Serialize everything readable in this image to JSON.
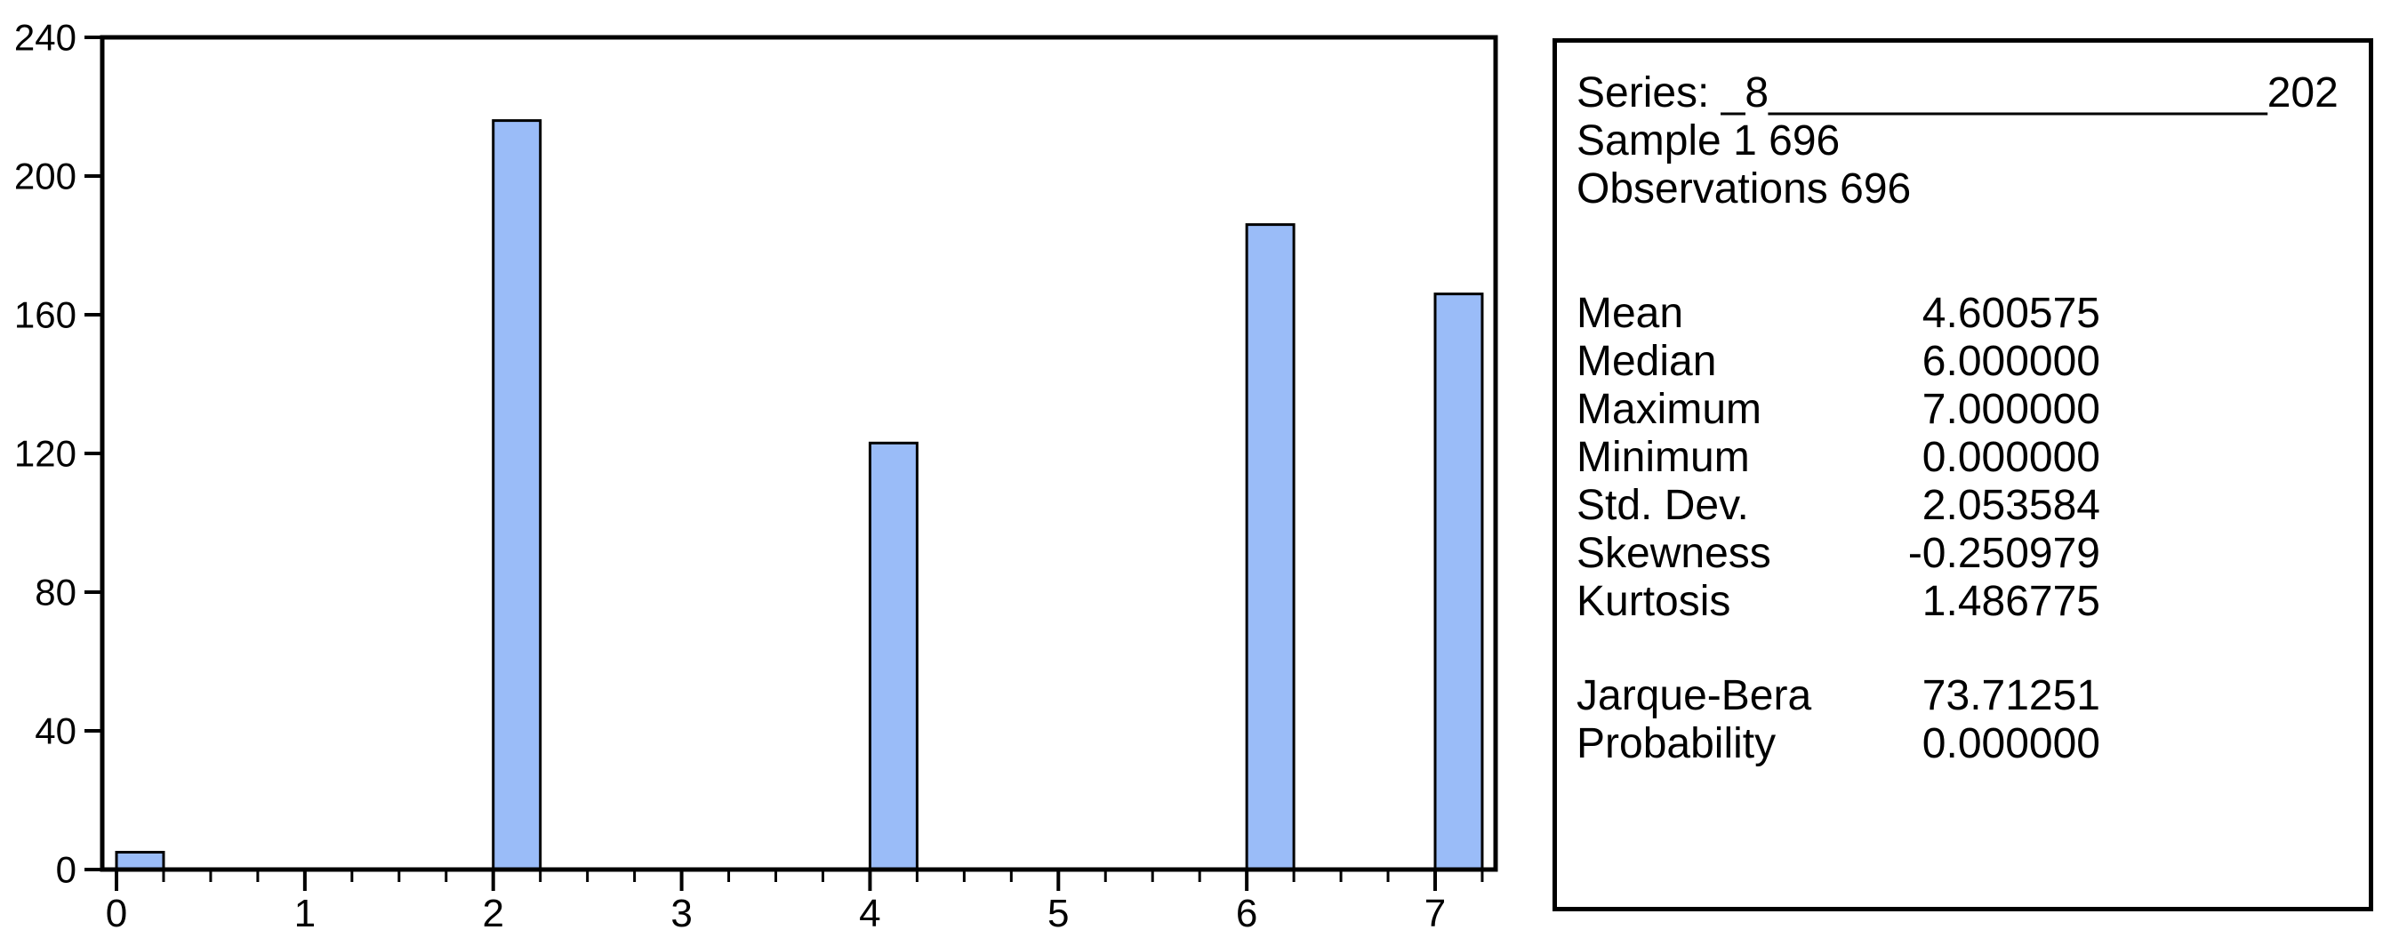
{
  "chart_data": {
    "type": "bar",
    "title": "",
    "xlabel": "",
    "ylabel": "",
    "x": [
      0,
      2,
      4,
      6,
      7
    ],
    "values": [
      5,
      216,
      123,
      186,
      166
    ],
    "bar_width_units": 0.25,
    "x_ticks_major": [
      0,
      1,
      2,
      3,
      4,
      5,
      6,
      7
    ],
    "x_tick_labels": [
      "0",
      "1",
      "2",
      "3",
      "4",
      "5",
      "6",
      "7"
    ],
    "x_minor_step": 0.25,
    "x_minor_range": [
      0.25,
      7.25
    ],
    "y_ticks": [
      0,
      40,
      80,
      120,
      160,
      200,
      240
    ],
    "y_tick_labels": [
      "0",
      "40",
      "80",
      "120",
      "160",
      "200",
      "240"
    ],
    "ylim": [
      0,
      240
    ],
    "xlim": [
      -0.075,
      7.32
    ],
    "grid": "off",
    "legend": "none",
    "colors": {
      "bar_fill": "#9abcf8",
      "bar_stroke": "#000000",
      "axis": "#000000",
      "background": "#ffffff"
    }
  },
  "stats_panel": {
    "series_line": "Series: _8_____________________202",
    "sample_line": "Sample 1 696",
    "observations_line": "Observations 696",
    "rows_primary": [
      {
        "label": "Mean",
        "value": "4.600575"
      },
      {
        "label": "Median",
        "value": "6.000000"
      },
      {
        "label": "Maximum",
        "value": "7.000000"
      },
      {
        "label": "Minimum",
        "value": "0.000000"
      },
      {
        "label": "Std. Dev.",
        "value": "2.053584"
      },
      {
        "label": "Skewness",
        "value": "-0.250979"
      },
      {
        "label": "Kurtosis",
        "value": "1.486775"
      }
    ],
    "rows_secondary": [
      {
        "label": "Jarque-Bera",
        "value": "73.71251"
      },
      {
        "label": "Probability",
        "value": "0.000000"
      }
    ]
  }
}
